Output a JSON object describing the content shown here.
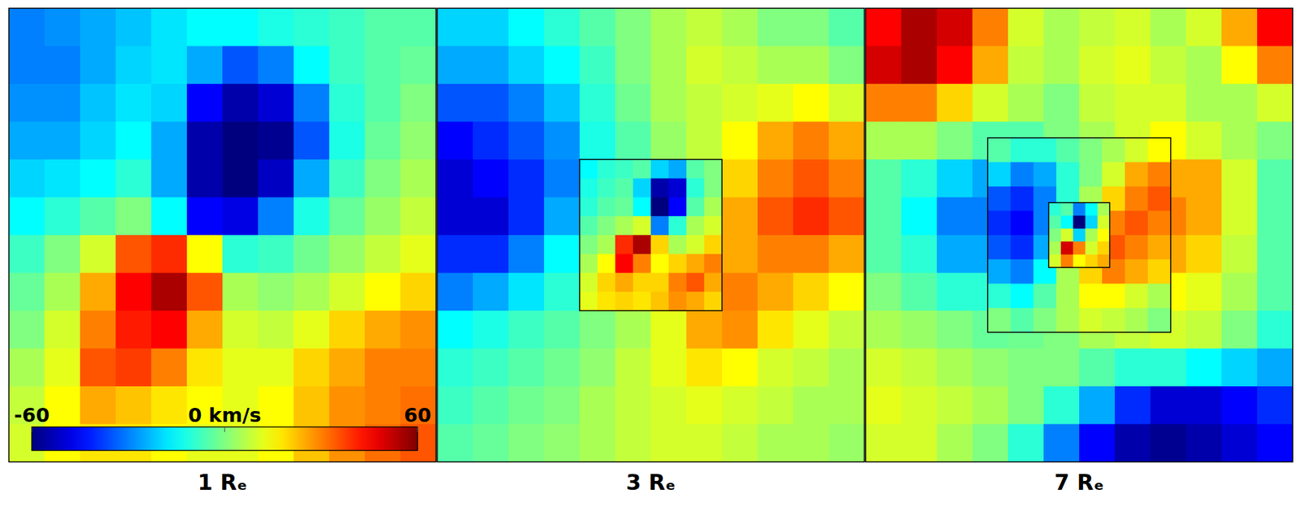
{
  "chart_data": [
    {
      "type": "heatmap",
      "title": "1 Rₑ",
      "tick_labels": false,
      "xlim": [
        -1,
        1
      ],
      "ylim": [
        -1,
        1
      ],
      "cells": [
        [
          -30,
          -28,
          -25,
          -22,
          -18,
          -15,
          -15,
          -12,
          -10,
          -8,
          -5,
          -5
        ],
        [
          -30,
          -30,
          -25,
          -20,
          -18,
          -25,
          -35,
          -30,
          -15,
          -8,
          -5,
          -3
        ],
        [
          -28,
          -28,
          -22,
          -18,
          -20,
          -45,
          -55,
          -50,
          -30,
          -10,
          -5,
          0
        ],
        [
          -25,
          -25,
          -20,
          -15,
          -25,
          -55,
          -60,
          -58,
          -35,
          -12,
          -3,
          2
        ],
        [
          -20,
          -18,
          -15,
          -10,
          -25,
          -55,
          -60,
          -52,
          -25,
          -8,
          0,
          5
        ],
        [
          -15,
          -10,
          -5,
          0,
          -15,
          -45,
          -48,
          -30,
          -12,
          -3,
          3,
          8
        ],
        [
          -8,
          0,
          10,
          35,
          40,
          15,
          -10,
          -8,
          -2,
          3,
          8,
          12
        ],
        [
          -3,
          5,
          25,
          45,
          55,
          35,
          5,
          2,
          5,
          10,
          15,
          20
        ],
        [
          0,
          10,
          30,
          42,
          45,
          25,
          10,
          8,
          12,
          20,
          25,
          28
        ],
        [
          5,
          12,
          35,
          38,
          30,
          18,
          12,
          12,
          20,
          25,
          30,
          30
        ],
        [
          8,
          15,
          25,
          22,
          18,
          15,
          12,
          15,
          22,
          28,
          30,
          32
        ],
        [
          10,
          15,
          18,
          18,
          15,
          12,
          12,
          15,
          22,
          28,
          32,
          35
        ]
      ],
      "colorbar": {
        "range": [
          -60,
          60
        ],
        "ticks": [
          -60,
          {
            "value": 0,
            "label": "0 km/s"
          },
          60
        ]
      }
    },
    {
      "type": "heatmap",
      "title": "3 Rₑ",
      "tick_labels": false,
      "xlim": [
        -3,
        3
      ],
      "ylim": [
        -3,
        3
      ],
      "cells": [
        [
          -20,
          -20,
          -15,
          -10,
          -5,
          0,
          5,
          8,
          5,
          0,
          0,
          -5
        ],
        [
          -25,
          -25,
          -20,
          -15,
          -8,
          0,
          5,
          10,
          8,
          5,
          5,
          0
        ],
        [
          -35,
          -35,
          -30,
          -22,
          -10,
          -2,
          5,
          8,
          10,
          12,
          15,
          10
        ],
        [
          -45,
          -40,
          -35,
          -28,
          -12,
          -5,
          3,
          8,
          15,
          25,
          30,
          25
        ],
        [
          -50,
          -45,
          -40,
          -30,
          -15,
          -10,
          5,
          10,
          20,
          30,
          35,
          30
        ],
        [
          -50,
          -50,
          -40,
          -25,
          -10,
          -5,
          10,
          15,
          25,
          35,
          40,
          35
        ],
        [
          -40,
          -40,
          -30,
          -15,
          -5,
          0,
          5,
          10,
          25,
          30,
          30,
          25
        ],
        [
          -30,
          -25,
          -18,
          -10,
          -5,
          0,
          10,
          15,
          30,
          25,
          20,
          15
        ],
        [
          -15,
          -12,
          -8,
          -5,
          0,
          5,
          12,
          25,
          28,
          18,
          12,
          8
        ],
        [
          -10,
          -8,
          -5,
          -2,
          2,
          8,
          12,
          18,
          15,
          10,
          8,
          5
        ],
        [
          -8,
          -5,
          -2,
          0,
          5,
          8,
          10,
          12,
          10,
          8,
          5,
          5
        ],
        [
          -5,
          -3,
          0,
          2,
          5,
          8,
          10,
          10,
          8,
          5,
          5,
          3
        ]
      ],
      "insets": [
        {
          "xlim": [
            -1,
            1
          ],
          "ylim": [
            -1,
            1
          ],
          "cells": [
            [
              -15,
              -10,
              -8,
              -5,
              -20,
              -25,
              -5,
              0
            ],
            [
              -12,
              -8,
              -5,
              -20,
              -55,
              -50,
              -10,
              0
            ],
            [
              -10,
              -5,
              -3,
              -15,
              -60,
              -45,
              -5,
              5
            ],
            [
              -5,
              0,
              5,
              10,
              -30,
              -10,
              5,
              10
            ],
            [
              0,
              5,
              40,
              55,
              20,
              5,
              10,
              20
            ],
            [
              5,
              15,
              45,
              30,
              15,
              20,
              25,
              30
            ],
            [
              10,
              20,
              25,
              20,
              20,
              30,
              35,
              25
            ],
            [
              12,
              18,
              20,
              18,
              22,
              28,
              25,
              20
            ]
          ]
        }
      ]
    },
    {
      "type": "heatmap",
      "title": "7 Rₑ",
      "tick_labels": false,
      "xlim": [
        -7,
        7
      ],
      "ylim": [
        -7,
        7
      ],
      "cells": [
        [
          45,
          55,
          50,
          30,
          10,
          5,
          8,
          10,
          5,
          10,
          25,
          45
        ],
        [
          50,
          55,
          45,
          25,
          8,
          5,
          10,
          12,
          8,
          5,
          15,
          30
        ],
        [
          30,
          30,
          20,
          10,
          5,
          0,
          8,
          10,
          10,
          5,
          5,
          10
        ],
        [
          5,
          5,
          0,
          -5,
          -5,
          0,
          5,
          10,
          15,
          10,
          5,
          0
        ],
        [
          -5,
          -10,
          -20,
          -25,
          -15,
          -5,
          10,
          20,
          25,
          25,
          10,
          -5
        ],
        [
          -5,
          -15,
          -30,
          -30,
          -20,
          -5,
          15,
          25,
          30,
          25,
          10,
          -5
        ],
        [
          -5,
          -10,
          -25,
          -25,
          -15,
          0,
          10,
          20,
          25,
          20,
          8,
          -5
        ],
        [
          0,
          -5,
          -10,
          -10,
          -5,
          0,
          5,
          10,
          15,
          12,
          5,
          -5
        ],
        [
          5,
          3,
          0,
          -3,
          -2,
          0,
          5,
          8,
          10,
          8,
          0,
          -10
        ],
        [
          10,
          8,
          5,
          2,
          0,
          0,
          -5,
          -10,
          -10,
          -15,
          -20,
          -25
        ],
        [
          12,
          10,
          8,
          5,
          0,
          -10,
          -25,
          -40,
          -50,
          -50,
          -45,
          -40
        ],
        [
          10,
          10,
          5,
          0,
          -10,
          -30,
          -45,
          -55,
          -58,
          -55,
          -50,
          -45
        ]
      ],
      "insets": [
        {
          "xlim": [
            -3,
            3
          ],
          "ylim": [
            -3,
            3
          ],
          "cells": [
            [
              -5,
              -10,
              -10,
              -5,
              0,
              5,
              10,
              15
            ],
            [
              -20,
              -30,
              -25,
              -10,
              0,
              10,
              25,
              30
            ],
            [
              -35,
              -40,
              -30,
              -10,
              5,
              20,
              30,
              35
            ],
            [
              -40,
              -45,
              -30,
              -15,
              20,
              30,
              35,
              30
            ],
            [
              -35,
              -40,
              -25,
              10,
              25,
              35,
              30,
              25
            ],
            [
              -25,
              -30,
              -15,
              5,
              20,
              30,
              25,
              20
            ],
            [
              -10,
              -15,
              -5,
              5,
              15,
              15,
              10,
              5
            ],
            [
              0,
              -5,
              0,
              5,
              10,
              8,
              5,
              0
            ]
          ]
        },
        {
          "xlim": [
            -1,
            1
          ],
          "ylim": [
            -1,
            1
          ],
          "cells": [
            [
              -10,
              -5,
              -30,
              -15,
              5
            ],
            [
              -5,
              -15,
              -60,
              -20,
              10
            ],
            [
              0,
              10,
              -20,
              5,
              15
            ],
            [
              5,
              50,
              30,
              10,
              20
            ],
            [
              10,
              30,
              15,
              20,
              25
            ]
          ]
        }
      ]
    }
  ]
}
